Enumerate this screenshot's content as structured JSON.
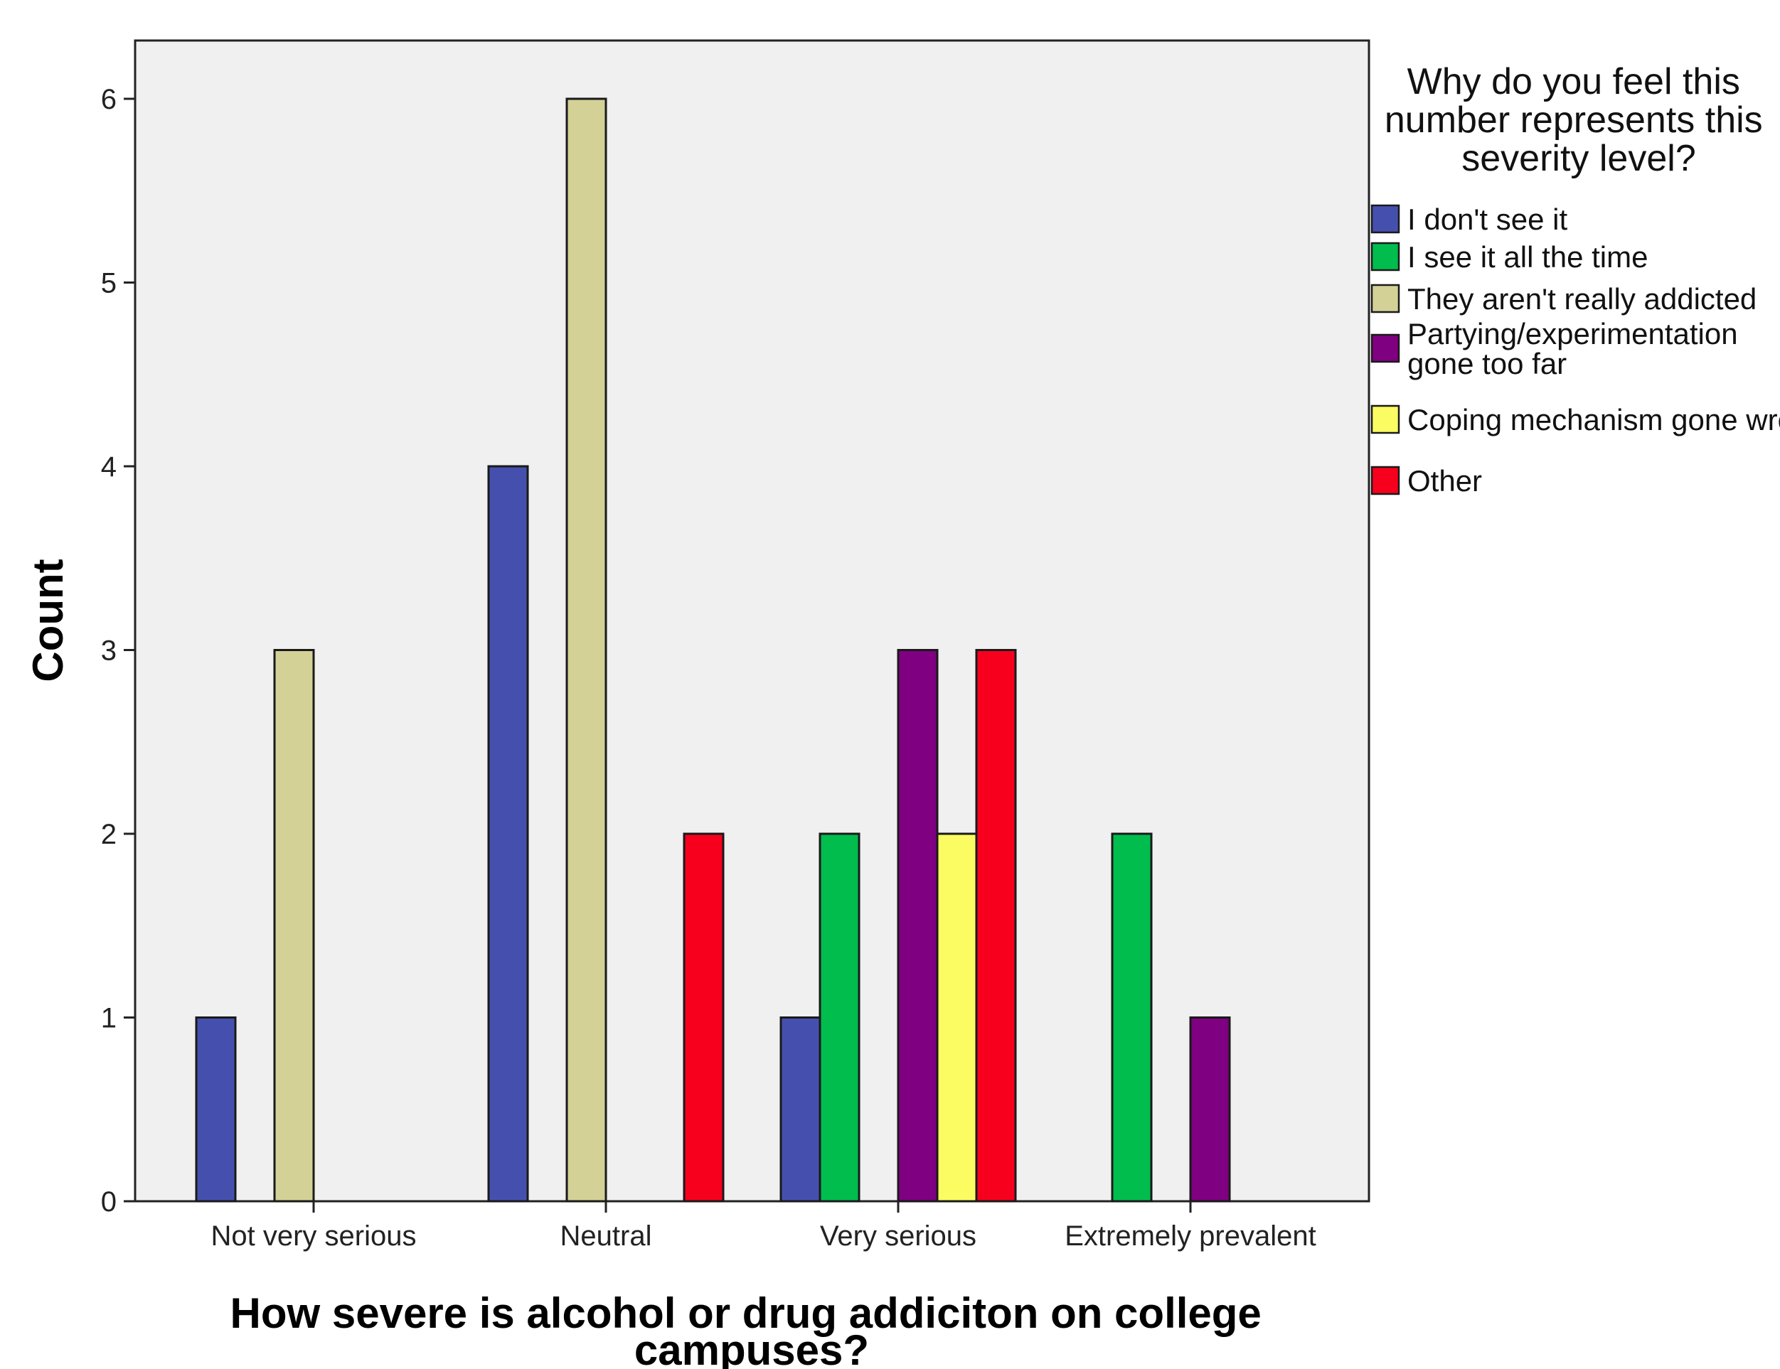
{
  "chart_data": {
    "type": "bar",
    "categories": [
      "Not very serious",
      "Neutral",
      "Very serious",
      "Extremely prevalent"
    ],
    "series": [
      {
        "name": "I don't see it",
        "color": "#4550ae",
        "values": [
          1,
          4,
          1,
          0
        ]
      },
      {
        "name": "I see it all the time",
        "color": "#00bd4d",
        "values": [
          0,
          0,
          2,
          2
        ]
      },
      {
        "name": "They aren't really addicted",
        "color": "#d3d196",
        "values": [
          3,
          6,
          0,
          0
        ]
      },
      {
        "name": "Partying/experimentation gone too far",
        "color": "#7f0080",
        "values": [
          0,
          0,
          3,
          1
        ]
      },
      {
        "name": "Coping mechanism gone wrong",
        "color": "#fbfb62",
        "values": [
          0,
          0,
          2,
          0
        ]
      },
      {
        "name": "Other",
        "color": "#f7001d",
        "values": [
          0,
          2,
          3,
          0
        ]
      }
    ],
    "xlabel": "How severe is alcohol or drug addiciton on college campuses?",
    "ylabel": "Count",
    "ylim": [
      0,
      6
    ],
    "yticks": [
      0,
      1,
      2,
      3,
      4,
      5,
      6
    ],
    "grid": false,
    "plot_background": "#f0f0f0",
    "legend": {
      "title": "Why do you feel this number represents this severity level?",
      "placement": "right"
    }
  }
}
